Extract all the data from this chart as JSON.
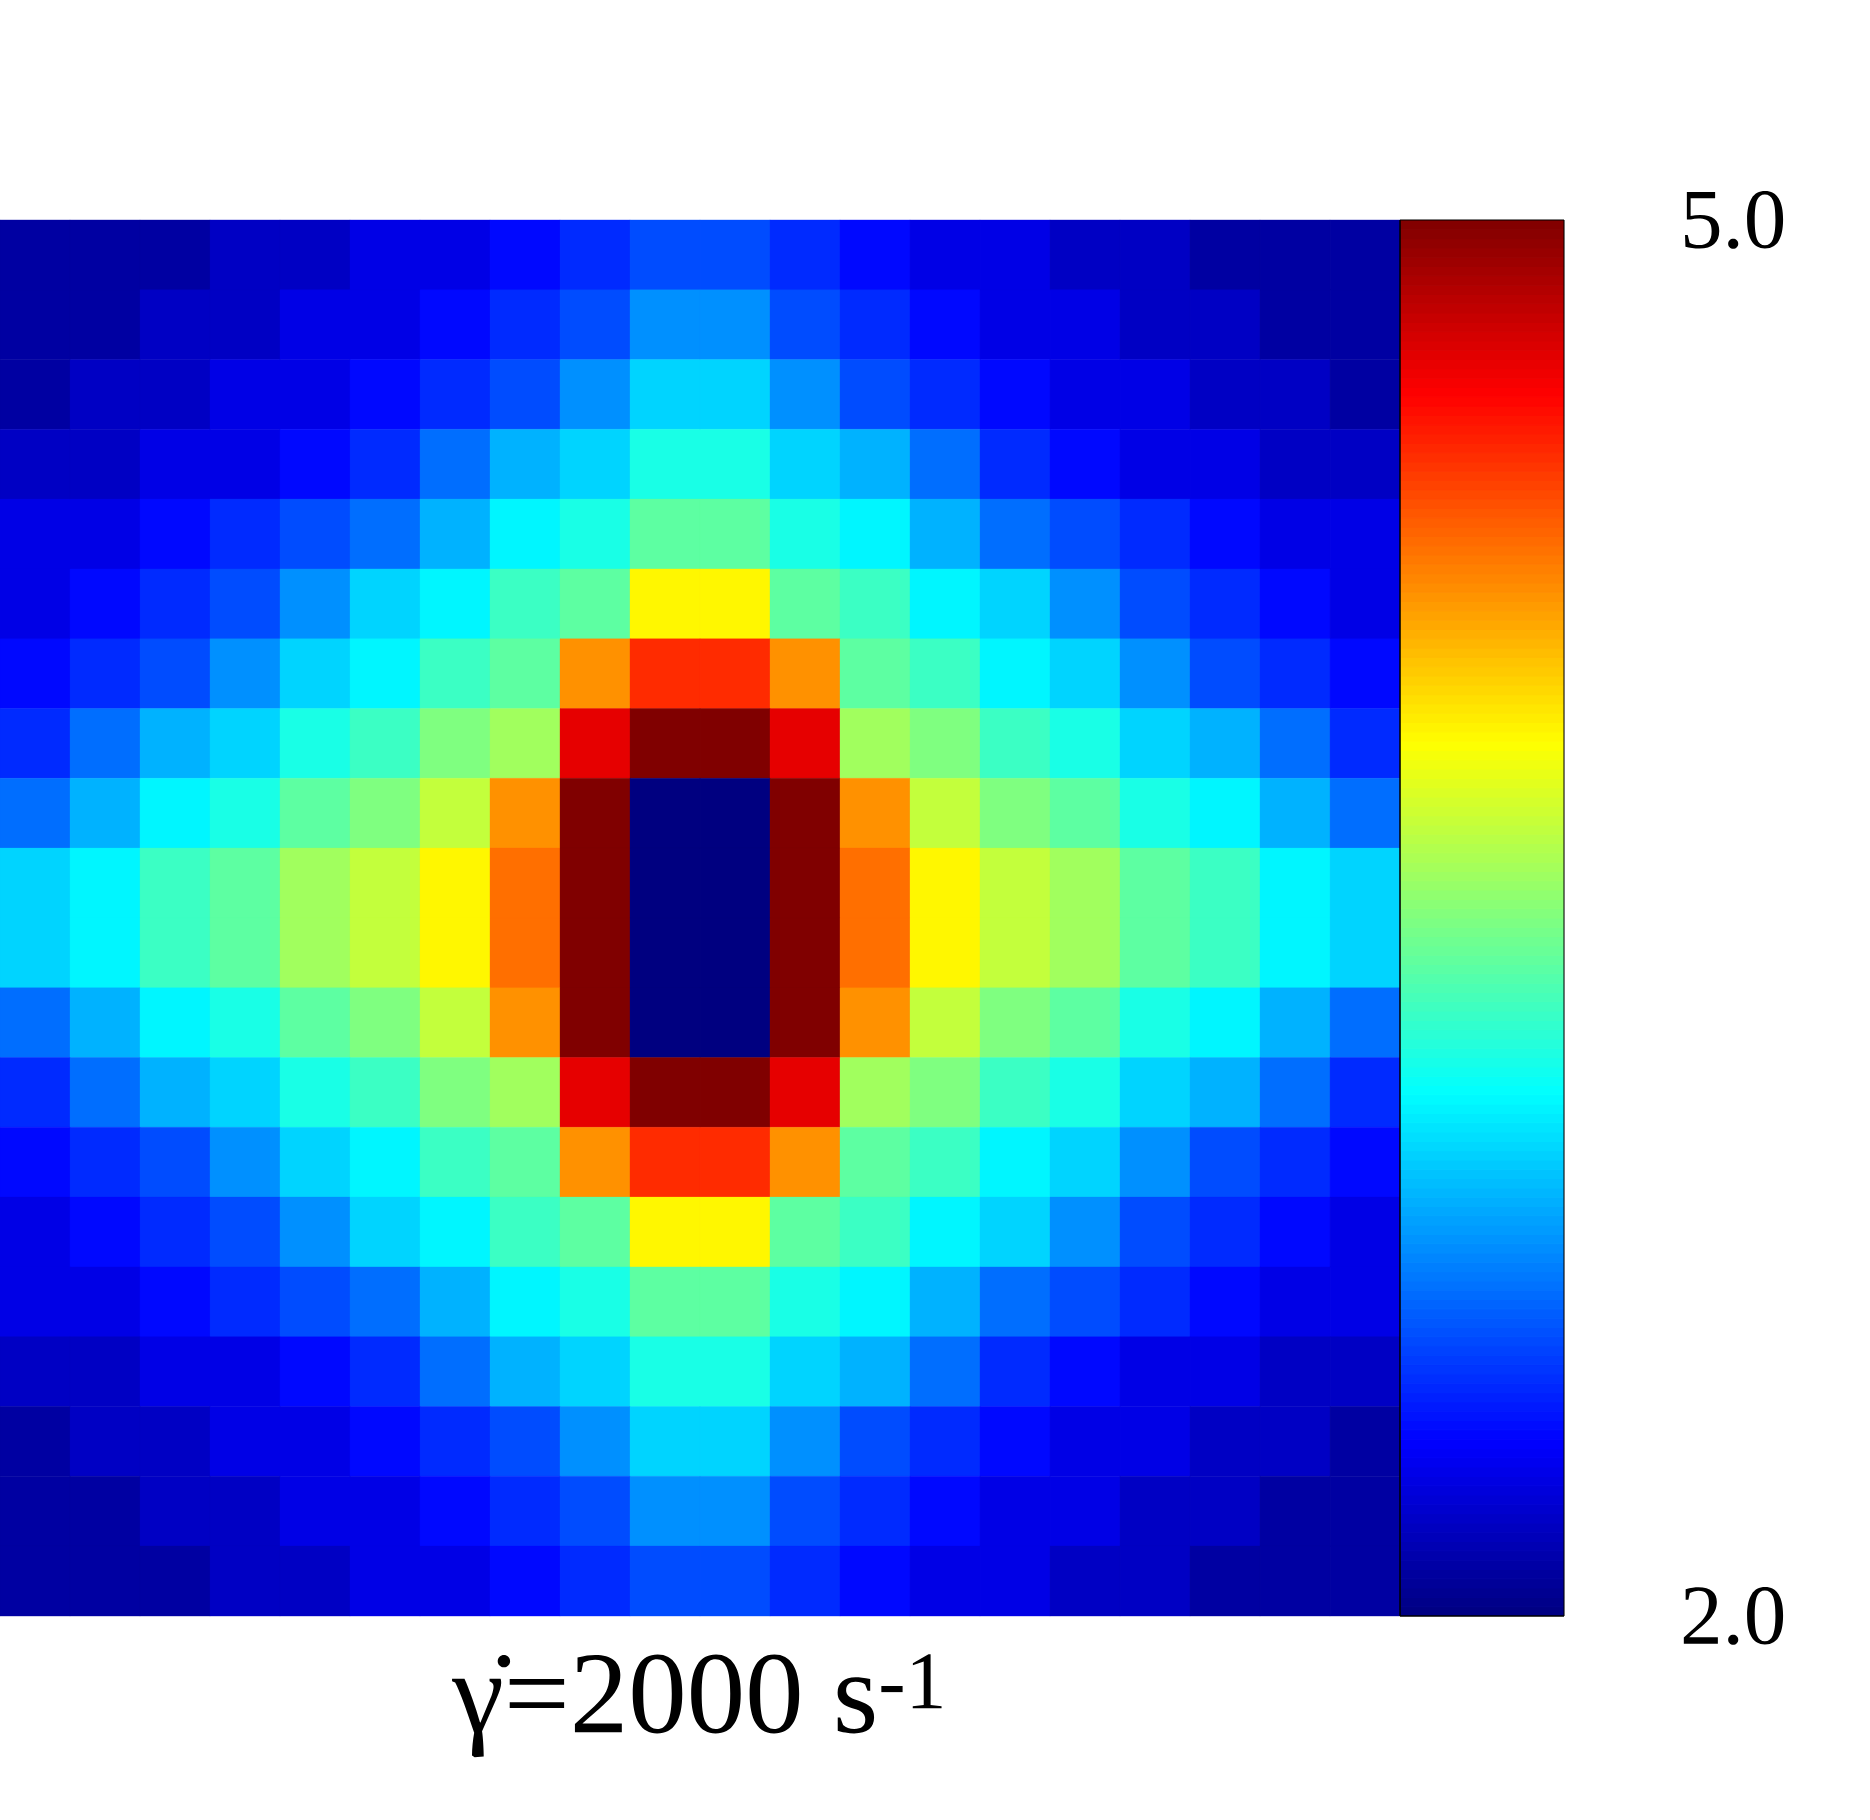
{
  "chart_data": {
    "type": "heatmap",
    "xlabel": "γ̇=2000 s$^{-1}$",
    "categories": [
      null,
      null,
      null,
      null,
      null,
      null,
      null,
      null,
      null,
      null,
      null,
      null,
      null,
      null,
      null,
      null,
      null,
      null,
      null,
      null
    ],
    "y_categories": [
      null,
      null,
      null,
      null,
      null,
      null,
      null,
      null,
      null,
      null,
      null,
      null,
      null,
      null,
      null,
      null,
      null,
      null,
      null,
      null
    ],
    "clim": [
      2.0,
      5.0
    ],
    "cticks": [
      {
        "value": 2.0,
        "label": "2.0"
      },
      {
        "value": 5.0,
        "label": "5.0"
      }
    ],
    "cells": [
      [
        2.1,
        2.1,
        2.1,
        2.2,
        2.2,
        2.3,
        2.3,
        2.4,
        2.5,
        2.6,
        2.6,
        2.5,
        2.4,
        2.3,
        2.3,
        2.2,
        2.2,
        2.1,
        2.1,
        2.1
      ],
      [
        2.1,
        2.1,
        2.2,
        2.2,
        2.3,
        2.3,
        2.4,
        2.5,
        2.6,
        2.8,
        2.8,
        2.6,
        2.5,
        2.4,
        2.3,
        2.3,
        2.2,
        2.2,
        2.1,
        2.1
      ],
      [
        2.1,
        2.2,
        2.2,
        2.3,
        2.3,
        2.4,
        2.5,
        2.6,
        2.8,
        3.0,
        3.0,
        2.8,
        2.6,
        2.5,
        2.4,
        2.3,
        2.3,
        2.2,
        2.2,
        2.1
      ],
      [
        2.2,
        2.2,
        2.3,
        2.3,
        2.4,
        2.5,
        2.7,
        2.9,
        3.0,
        3.2,
        3.2,
        3.0,
        2.9,
        2.7,
        2.5,
        2.4,
        2.3,
        2.3,
        2.2,
        2.2
      ],
      [
        2.3,
        2.3,
        2.4,
        2.5,
        2.6,
        2.7,
        2.9,
        3.1,
        3.2,
        3.4,
        3.4,
        3.2,
        3.1,
        2.9,
        2.7,
        2.6,
        2.5,
        2.4,
        2.3,
        2.3
      ],
      [
        2.3,
        2.4,
        2.5,
        2.6,
        2.8,
        3.0,
        3.1,
        3.3,
        3.4,
        3.9,
        3.9,
        3.4,
        3.3,
        3.1,
        3.0,
        2.8,
        2.6,
        2.5,
        2.4,
        2.3
      ],
      [
        2.4,
        2.5,
        2.6,
        2.8,
        3.0,
        3.1,
        3.3,
        3.4,
        4.2,
        4.5,
        4.5,
        4.2,
        3.4,
        3.3,
        3.1,
        3.0,
        2.8,
        2.6,
        2.5,
        2.4
      ],
      [
        2.5,
        2.7,
        2.9,
        3.0,
        3.2,
        3.3,
        3.5,
        3.6,
        4.7,
        5.0,
        5.0,
        4.7,
        3.6,
        3.5,
        3.3,
        3.2,
        3.0,
        2.9,
        2.7,
        2.5
      ],
      [
        2.7,
        2.9,
        3.1,
        3.2,
        3.4,
        3.5,
        3.7,
        4.2,
        5.0,
        2.0,
        2.0,
        5.0,
        4.2,
        3.7,
        3.5,
        3.4,
        3.2,
        3.1,
        2.9,
        2.7
      ],
      [
        3.0,
        3.1,
        3.3,
        3.4,
        3.6,
        3.7,
        3.9,
        4.3,
        5.0,
        2.0,
        2.0,
        5.0,
        4.3,
        3.9,
        3.7,
        3.6,
        3.4,
        3.3,
        3.1,
        3.0
      ],
      [
        3.0,
        3.1,
        3.3,
        3.4,
        3.6,
        3.7,
        3.9,
        4.3,
        5.0,
        2.0,
        2.0,
        5.0,
        4.3,
        3.9,
        3.7,
        3.6,
        3.4,
        3.3,
        3.1,
        3.0
      ],
      [
        2.7,
        2.9,
        3.1,
        3.2,
        3.4,
        3.5,
        3.7,
        4.2,
        5.0,
        2.0,
        2.0,
        5.0,
        4.2,
        3.7,
        3.5,
        3.4,
        3.2,
        3.1,
        2.9,
        2.7
      ],
      [
        2.5,
        2.7,
        2.9,
        3.0,
        3.2,
        3.3,
        3.5,
        3.6,
        4.7,
        5.0,
        5.0,
        4.7,
        3.6,
        3.5,
        3.3,
        3.2,
        3.0,
        2.9,
        2.7,
        2.5
      ],
      [
        2.4,
        2.5,
        2.6,
        2.8,
        3.0,
        3.1,
        3.3,
        3.4,
        4.2,
        4.5,
        4.5,
        4.2,
        3.4,
        3.3,
        3.1,
        3.0,
        2.8,
        2.6,
        2.5,
        2.4
      ],
      [
        2.3,
        2.4,
        2.5,
        2.6,
        2.8,
        3.0,
        3.1,
        3.3,
        3.4,
        3.9,
        3.9,
        3.4,
        3.3,
        3.1,
        3.0,
        2.8,
        2.6,
        2.5,
        2.4,
        2.3
      ],
      [
        2.3,
        2.3,
        2.4,
        2.5,
        2.6,
        2.7,
        2.9,
        3.1,
        3.2,
        3.4,
        3.4,
        3.2,
        3.1,
        2.9,
        2.7,
        2.6,
        2.5,
        2.4,
        2.3,
        2.3
      ],
      [
        2.2,
        2.2,
        2.3,
        2.3,
        2.4,
        2.5,
        2.7,
        2.9,
        3.0,
        3.2,
        3.2,
        3.0,
        2.9,
        2.7,
        2.5,
        2.4,
        2.3,
        2.3,
        2.2,
        2.2
      ],
      [
        2.1,
        2.2,
        2.2,
        2.3,
        2.3,
        2.4,
        2.5,
        2.6,
        2.8,
        3.0,
        3.0,
        2.8,
        2.6,
        2.5,
        2.4,
        2.3,
        2.3,
        2.2,
        2.2,
        2.1
      ],
      [
        2.1,
        2.1,
        2.2,
        2.2,
        2.3,
        2.3,
        2.4,
        2.5,
        2.6,
        2.8,
        2.8,
        2.6,
        2.5,
        2.4,
        2.3,
        2.3,
        2.2,
        2.2,
        2.1,
        2.1
      ],
      [
        2.1,
        2.1,
        2.1,
        2.2,
        2.2,
        2.3,
        2.3,
        2.4,
        2.5,
        2.6,
        2.6,
        2.5,
        2.4,
        2.3,
        2.3,
        2.2,
        2.2,
        2.1,
        2.1,
        2.1
      ]
    ]
  }
}
